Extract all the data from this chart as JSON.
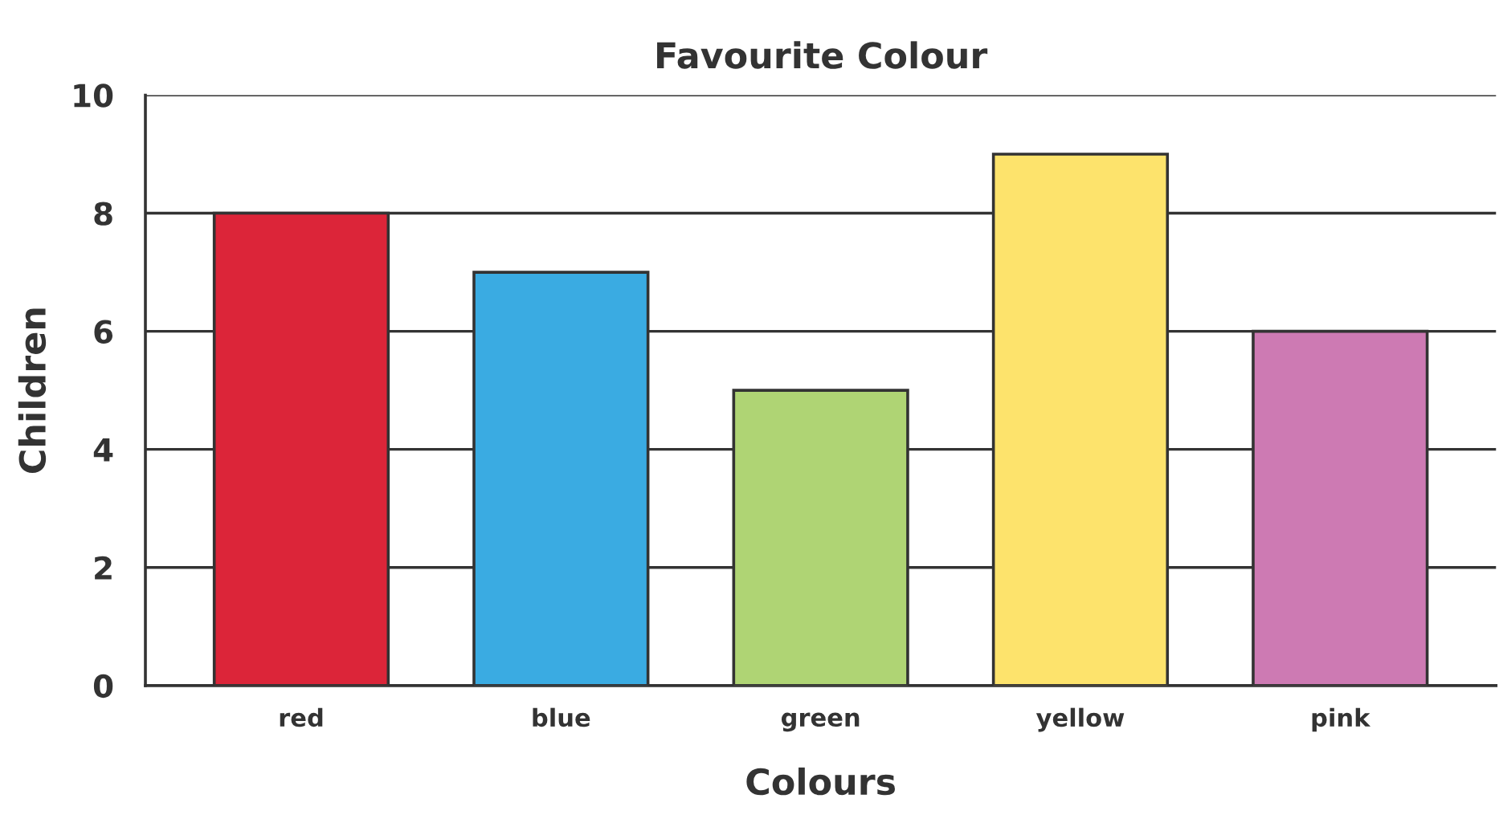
{
  "chart_data": {
    "type": "bar",
    "title": "Favourite Colour",
    "xlabel": "Colours",
    "ylabel": "Children",
    "categories": [
      "red",
      "blue",
      "green",
      "yellow",
      "pink"
    ],
    "values": [
      8,
      7,
      5,
      9,
      6
    ],
    "colors": [
      "#dc2539",
      "#3aabe2",
      "#afd474",
      "#fde36c",
      "#cd7ab3"
    ],
    "ylim": [
      0,
      10
    ],
    "yticks": [
      0,
      2,
      4,
      6,
      8,
      10
    ],
    "grid": "y",
    "legend": false
  }
}
